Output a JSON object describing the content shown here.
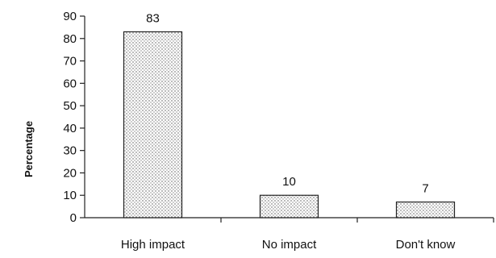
{
  "chart_data": {
    "type": "bar",
    "title": "",
    "xlabel": "",
    "ylabel": "Percentage",
    "ylim": [
      0,
      90
    ],
    "yticks": [
      0,
      10,
      20,
      30,
      40,
      50,
      60,
      70,
      80,
      90
    ],
    "categories": [
      "High impact",
      "No impact",
      "Don't know"
    ],
    "values": [
      83,
      10,
      7
    ],
    "data_labels": [
      "83",
      "10",
      "7"
    ],
    "grid": false,
    "legend": "none",
    "bar_fill": "dotted light gray",
    "bar_edge_color": "#222222"
  }
}
